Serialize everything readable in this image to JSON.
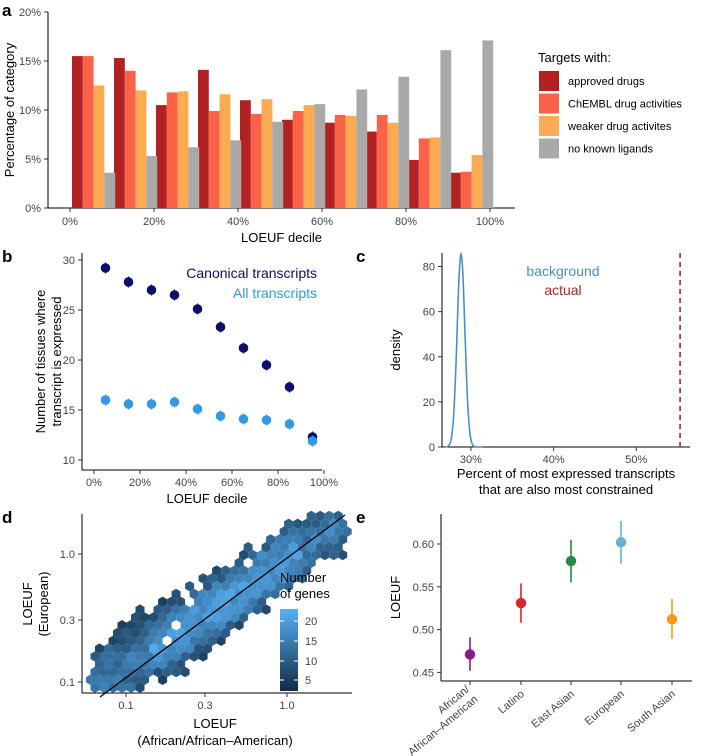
{
  "chart_data": [
    {
      "panel": "a",
      "type": "bar",
      "xlabel": "LOEUF decile",
      "ylabel": "Percentage of category",
      "ylim": [
        0,
        20
      ],
      "yticks": [
        "0%",
        "5%",
        "10%",
        "15%",
        "20%"
      ],
      "xticks": [
        "0%",
        "20%",
        "40%",
        "60%",
        "80%",
        "100%"
      ],
      "legend_title": "Targets with:",
      "series": [
        {
          "name": "approved drugs",
          "color": "#b22222",
          "values": [
            15.5,
            15.3,
            10.5,
            14.1,
            11.0,
            9.0,
            8.7,
            7.8,
            4.9,
            3.6
          ]
        },
        {
          "name": "ChEMBL drug activities",
          "color": "#fa6347",
          "values": [
            15.5,
            14.0,
            11.8,
            9.9,
            9.6,
            9.9,
            9.5,
            9.5,
            7.1,
            3.7
          ]
        },
        {
          "name": "weaker drug activites",
          "color": "#fdab52",
          "values": [
            12.5,
            12.0,
            11.9,
            11.6,
            11.1,
            10.5,
            9.4,
            8.7,
            7.2,
            5.4
          ]
        },
        {
          "name": "no known ligands",
          "color": "#a9a9a9",
          "values": [
            3.6,
            5.3,
            6.2,
            6.9,
            8.8,
            10.6,
            12.1,
            13.4,
            16.1,
            17.1
          ]
        }
      ]
    },
    {
      "panel": "b",
      "type": "scatter",
      "xlabel": "LOEUF decile",
      "ylabel_lines": [
        "Number of tissues where",
        "transcript is expressed"
      ],
      "xlim": [
        0,
        100
      ],
      "ylim": [
        9,
        30.7
      ],
      "xticks": [
        "0%",
        "20%",
        "40%",
        "60%",
        "80%",
        "100%"
      ],
      "yticks": [
        "10",
        "15",
        "20",
        "25",
        "30"
      ],
      "x": [
        5,
        15,
        25,
        35,
        45,
        55,
        65,
        75,
        85,
        95
      ],
      "series": [
        {
          "name": "Canonical transcripts",
          "color": "#0d0d6b",
          "values": [
            29.2,
            27.8,
            27.0,
            26.5,
            25.1,
            23.3,
            21.2,
            19.5,
            17.3,
            12.3
          ]
        },
        {
          "name": "All transcripts",
          "color": "#3399e6",
          "values": [
            16.0,
            15.6,
            15.6,
            15.8,
            15.1,
            14.4,
            14.1,
            14.0,
            13.6,
            11.9
          ]
        }
      ]
    },
    {
      "panel": "c",
      "type": "line",
      "xlabel_lines": [
        "Percent of most expressed transcripts",
        "that are also most constrained"
      ],
      "ylabel": "density",
      "xlim": [
        26.5,
        56.5
      ],
      "ylim": [
        0,
        86
      ],
      "xticks": [
        "30%",
        "40%",
        "50%"
      ],
      "yticks": [
        "0",
        "20",
        "40",
        "60",
        "80"
      ],
      "background": {
        "name": "background",
        "color": "#4a90c2",
        "mean": 28.8,
        "sd": 0.47,
        "peak": 85.5
      },
      "actual": {
        "name": "actual",
        "color": "#b22222",
        "value": 55.3
      }
    },
    {
      "panel": "d",
      "type": "heatmap",
      "xlabel_lines": [
        "LOEUF",
        "(African/African–American)"
      ],
      "ylabel_lines": [
        "LOEUF",
        "(European)"
      ],
      "xticks": [
        "0.1",
        "0.3",
        "1.0"
      ],
      "yticks": [
        "0.1",
        "0.3",
        "1.0"
      ],
      "legend_title_lines": [
        "Number",
        "of genes"
      ],
      "legend_ticks": [
        "20",
        "15",
        "10",
        "5"
      ],
      "color_low": "#132b43",
      "color_high": "#56b1f7"
    },
    {
      "panel": "e",
      "type": "scatter",
      "ylabel": "LOEUF",
      "ylim": [
        0.44,
        0.635
      ],
      "yticks": [
        "0.45",
        "0.50",
        "0.55",
        "0.60"
      ],
      "categories": [
        "African/\nAfrican–American",
        "Latino",
        "East Asian",
        "European",
        "South Asian"
      ],
      "category_labels": [
        [
          "African/",
          "African–American"
        ],
        [
          "Latino"
        ],
        [
          "East Asian"
        ],
        [
          "European"
        ],
        [
          "South Asian"
        ]
      ],
      "values": [
        0.471,
        0.531,
        0.58,
        0.602,
        0.512
      ],
      "lower": [
        0.452,
        0.508,
        0.555,
        0.577,
        0.489
      ],
      "upper": [
        0.491,
        0.554,
        0.605,
        0.627,
        0.536
      ],
      "colors": [
        "#8b1a8b",
        "#d62728",
        "#238b45",
        "#6baed6",
        "#f39c12"
      ]
    }
  ]
}
